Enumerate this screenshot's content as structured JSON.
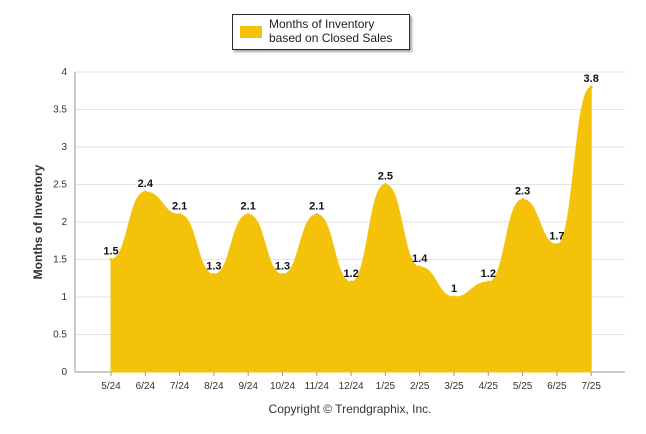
{
  "chart_data": {
    "type": "area",
    "categories": [
      "5/24",
      "6/24",
      "7/24",
      "8/24",
      "9/24",
      "10/24",
      "11/24",
      "12/24",
      "1/25",
      "2/25",
      "3/25",
      "4/25",
      "5/25",
      "6/25",
      "7/25"
    ],
    "series": [
      {
        "name": "Months of Inventory based on Closed Sales",
        "values": [
          1.5,
          2.4,
          2.1,
          1.3,
          2.1,
          1.3,
          2.1,
          1.2,
          2.5,
          1.4,
          1,
          1.2,
          2.3,
          1.7,
          3.8
        ],
        "labels": [
          "1.5",
          "2.4",
          "2.1",
          "1.3",
          "2.1",
          "1.3",
          "2.1",
          "1.2",
          "2.5",
          "1.4",
          "1",
          "1.2",
          "2.3",
          "1.7",
          "3.8"
        ]
      }
    ],
    "ylabel": "Months of Inventory",
    "xlabel": "",
    "ylim": [
      0,
      4
    ],
    "yticks": [
      "0",
      "0.5",
      "1",
      "1.5",
      "2",
      "2.5",
      "3",
      "3.5",
      "4"
    ],
    "grid": true,
    "legend_position": "top-center"
  },
  "legend": {
    "label": "Months of Inventory based on Closed Sales"
  },
  "footer": {
    "copyright": "Copyright © Trendgraphix, Inc."
  },
  "colors": {
    "fill": "#F5C20A",
    "grid": "#E3E3E3",
    "axis": "#999999"
  }
}
